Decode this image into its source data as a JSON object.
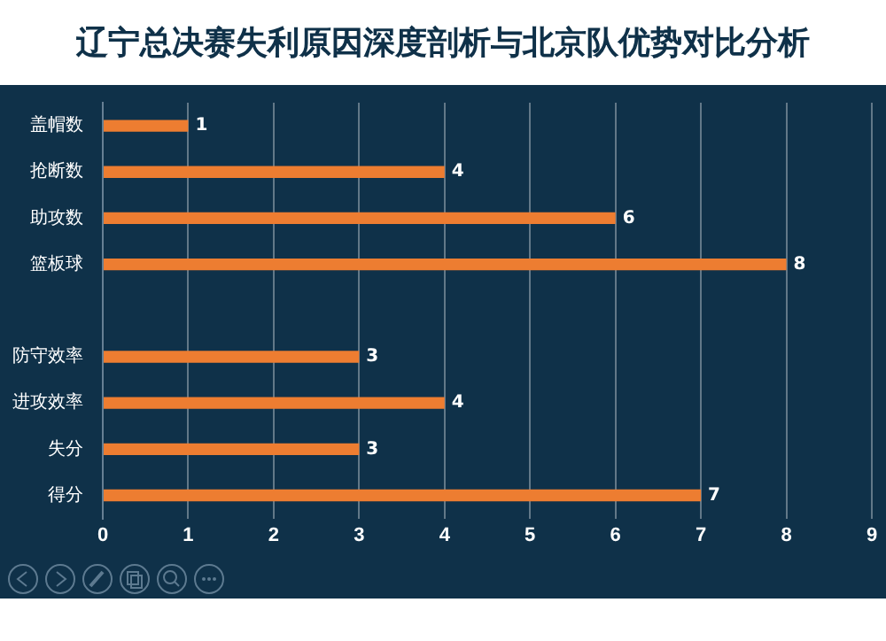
{
  "chart_data": {
    "type": "bar",
    "orientation": "horizontal",
    "title": "辽宁总决赛失利原因深度剖析与北京队优势对比分析",
    "categories": [
      "盖帽数",
      "抢断数",
      "助攻数",
      "篮板球",
      null,
      "防守效率",
      "进攻效率",
      "失分",
      "得分"
    ],
    "values": [
      1,
      4,
      6,
      8,
      null,
      3,
      4,
      3,
      7
    ],
    "color": "#ed7d31",
    "xlim": [
      0,
      9
    ],
    "xticks": [
      0,
      1,
      2,
      3,
      4,
      5,
      6,
      7,
      8,
      9
    ],
    "grid": "x",
    "data_labels": true
  }
}
